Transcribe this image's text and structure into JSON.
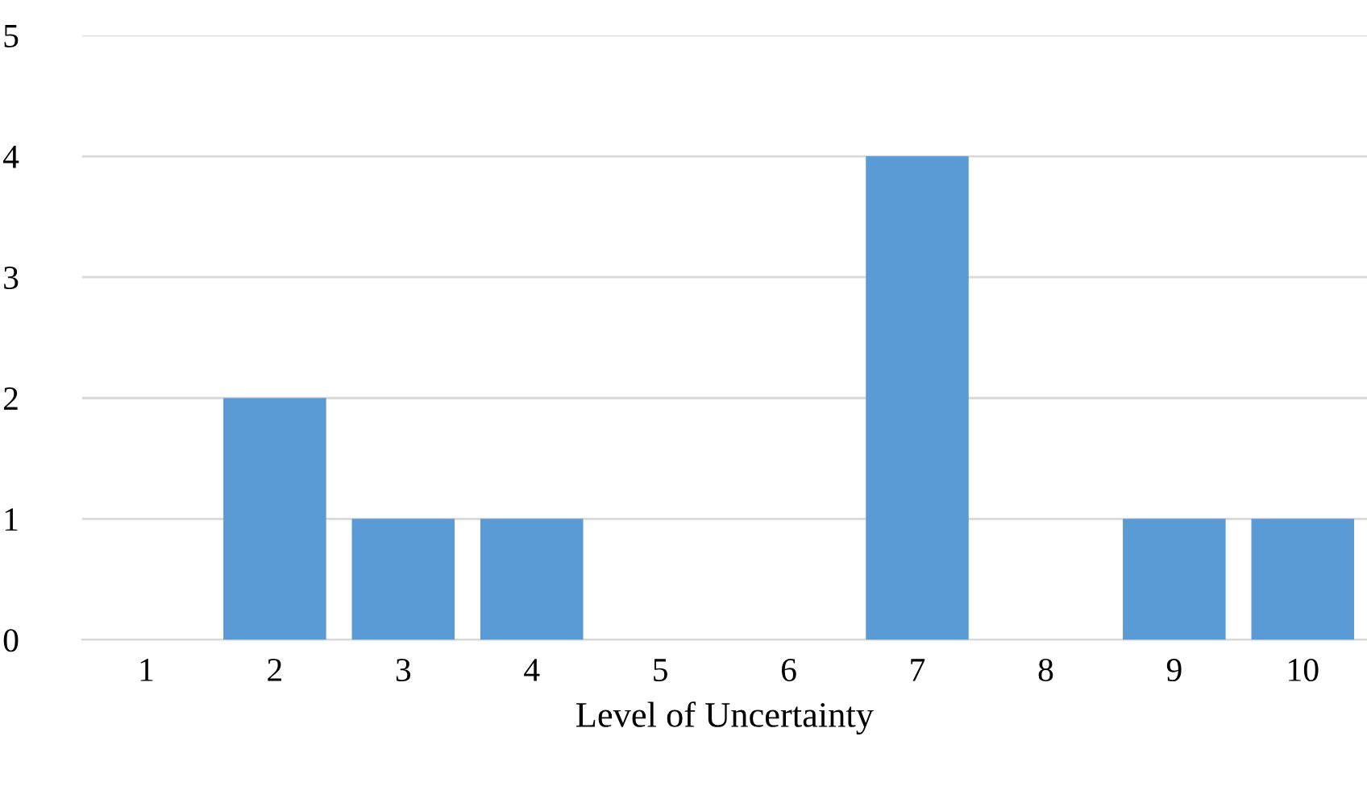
{
  "chart_data": {
    "type": "bar",
    "xlabel": "Level of Uncertainty",
    "categories": [
      "1",
      "2",
      "3",
      "4",
      "5",
      "6",
      "7",
      "8",
      "9",
      "10"
    ],
    "values": [
      0,
      2,
      1,
      1,
      0,
      0,
      4,
      0,
      1,
      1
    ],
    "color": "#5b9bd5",
    "ylim": [
      0,
      5
    ],
    "yticks": [
      0,
      1,
      2,
      3,
      4,
      5
    ],
    "grid": "y",
    "legend": false
  }
}
